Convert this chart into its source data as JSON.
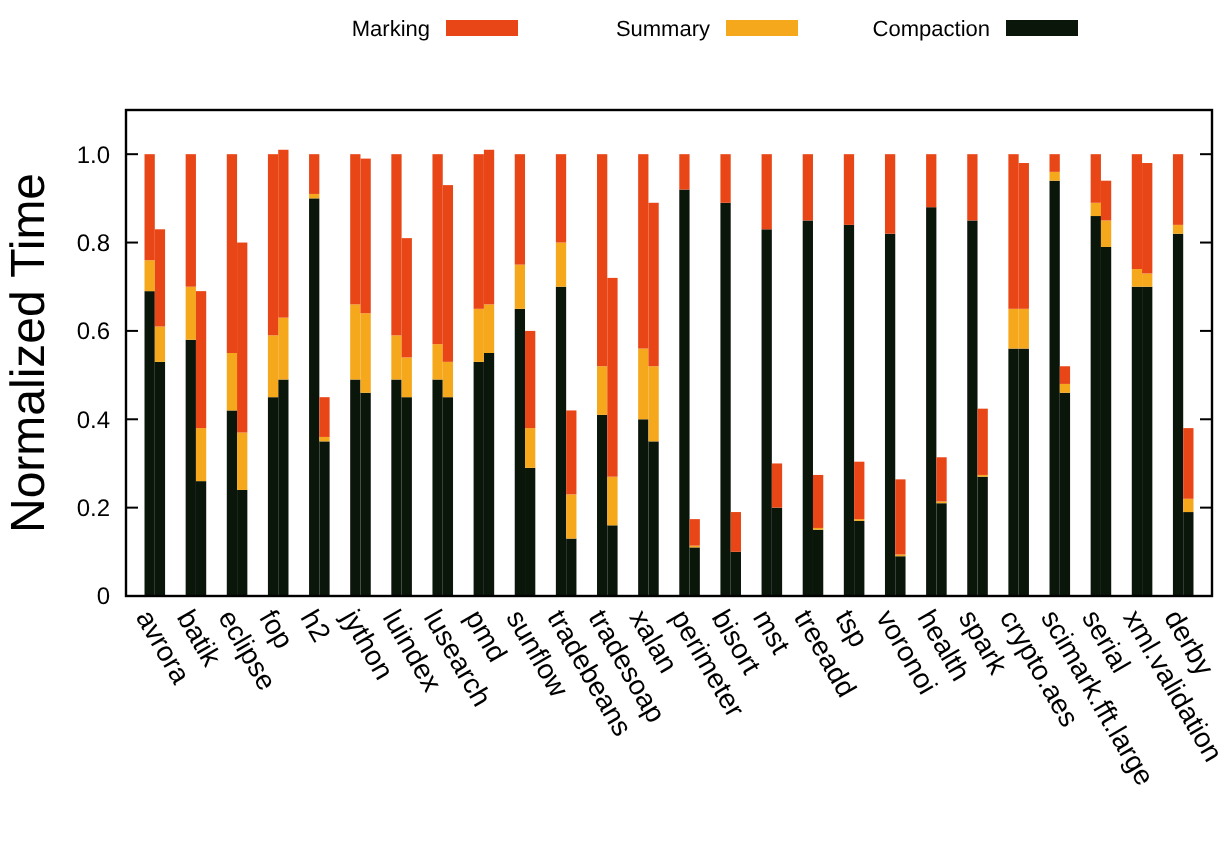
{
  "chart_data": {
    "type": "bar",
    "stacked": true,
    "ylabel": "Normalized Time",
    "legend": "top",
    "ylim": [
      0,
      1.1
    ],
    "yticks": [
      0,
      0.2,
      0.4,
      0.6,
      {
        "value": 0.8,
        "label": "0.8"
      },
      {
        "value": 1,
        "label": "1.0"
      }
    ],
    "categories": [
      "avrora",
      null,
      "batik",
      null,
      "eclipse",
      null,
      "fop",
      null,
      "h2",
      null,
      "jython",
      null,
      "luindex",
      null,
      "lusearch",
      null,
      "pmd",
      null,
      "sunflow",
      null,
      "tradebeans",
      null,
      "tradesoap",
      null,
      "xalan",
      null,
      "perimeter",
      null,
      "bisort",
      null,
      "mst",
      null,
      "treeadd",
      null,
      "tsp",
      null,
      "voronoi",
      null,
      "health",
      null,
      "spark",
      null,
      "crypto.aes",
      null,
      "scimark.fft.large",
      null,
      "serial",
      null,
      "xml.validation",
      null,
      "derby",
      null
    ],
    "series": [
      {
        "name": "Compaction",
        "color": "#0b160b",
        "values": [
          0.69,
          0.53,
          0.58,
          0.26,
          0.42,
          0.24,
          0.45,
          0.49,
          0.9,
          0.35,
          0.49,
          0.46,
          0.49,
          0.45,
          0.49,
          0.45,
          0.53,
          0.55,
          0.65,
          0.29,
          0.7,
          0.13,
          0.41,
          0.16,
          0.4,
          0.35,
          0.92,
          0.11,
          0.89,
          0.1,
          0.83,
          0.2,
          0.85,
          0.15,
          0.84,
          0.17,
          0.82,
          0.09,
          0.88,
          0.21,
          0.85,
          0.27,
          0.56,
          0.56,
          0.94,
          0.46,
          0.86,
          0.79,
          0.7,
          0.7,
          0.82,
          0.19
        ]
      },
      {
        "name": "Summary",
        "color": "#f5a81c",
        "values": [
          0.07,
          0.08,
          0.12,
          0.12,
          0.13,
          0.13,
          0.14,
          0.14,
          0.01,
          0.01,
          0.17,
          0.18,
          0.1,
          0.09,
          0.08,
          0.08,
          0.12,
          0.11,
          0.1,
          0.09,
          0.1,
          0.1,
          0.11,
          0.11,
          0.16,
          0.17,
          0,
          0.004,
          0,
          0,
          0,
          0,
          0,
          0.004,
          0,
          0.004,
          0,
          0.004,
          0,
          0.004,
          0,
          0.004,
          0.09,
          0.09,
          0.02,
          0.02,
          0.03,
          0.06,
          0.04,
          0.03,
          0.02,
          0.03
        ]
      },
      {
        "name": "Marking",
        "color": "#e84617",
        "values": [
          0.24,
          0.22,
          0.3,
          0.31,
          0.45,
          0.43,
          0.41,
          0.38,
          0.09,
          0.09,
          0.34,
          0.35,
          0.41,
          0.27,
          0.43,
          0.4,
          0.35,
          0.35,
          0.25,
          0.22,
          0.2,
          0.19,
          0.48,
          0.45,
          0.44,
          0.37,
          0.08,
          0.06,
          0.11,
          0.09,
          0.17,
          0.1,
          0.15,
          0.12,
          0.16,
          0.13,
          0.18,
          0.17,
          0.12,
          0.1,
          0.15,
          0.15,
          0.35,
          0.33,
          0.04,
          0.04,
          0.11,
          0.09,
          0.26,
          0.25,
          0.16,
          0.16
        ]
      }
    ]
  }
}
